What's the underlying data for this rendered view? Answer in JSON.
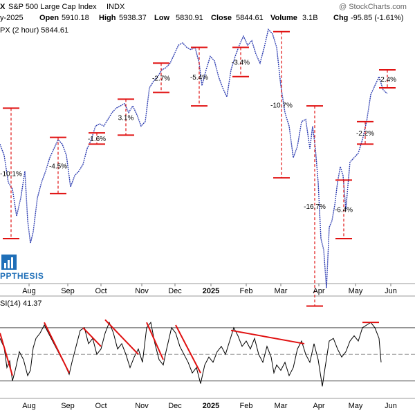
{
  "header": {
    "symbol_tail": "X",
    "name": "S&P 500 Large Cap Index",
    "exchange": "INDX",
    "watermark": "@ StockCharts.com",
    "date_tail": "y-2025",
    "open_label": "Open",
    "open_value": "5910.18",
    "high_label": "High",
    "high_value": "5938.37",
    "low_label": "Low",
    "low_value": "5830.91",
    "close_label": "Close",
    "close_value": "5844.61",
    "volume_label": "Volume",
    "volume_value": "3.1B",
    "chg_label": "Chg",
    "chg_value": "-95.85 (-1.61%)",
    "legend": "PX (2 hour) 5844.61"
  },
  "logo_text": "PPTHESIS",
  "rsi_legend": "SI(14) 41.37",
  "colors": {
    "price": "#2b3bb0",
    "marker": "#e01010",
    "rsi": "#000000",
    "trend": "#e01010",
    "logo": "#1f6fb8"
  },
  "chart_data": {
    "type": "line",
    "price_axis_range": [
      5000,
      6150
    ],
    "x_labels": [
      "Aug",
      "Sep",
      "Oct",
      "Nov",
      "Dec",
      "2025",
      "Feb",
      "Mar",
      "Apr",
      "May",
      "Jun"
    ],
    "price_series": [
      [
        0,
        5620
      ],
      [
        6,
        5570
      ],
      [
        12,
        5450
      ],
      [
        18,
        5420
      ],
      [
        24,
        5300
      ],
      [
        30,
        5380
      ],
      [
        36,
        5500
      ],
      [
        40,
        5280
      ],
      [
        44,
        5180
      ],
      [
        48,
        5230
      ],
      [
        54,
        5380
      ],
      [
        60,
        5450
      ],
      [
        66,
        5500
      ],
      [
        72,
        5560
      ],
      [
        78,
        5600
      ],
      [
        84,
        5640
      ],
      [
        90,
        5620
      ],
      [
        96,
        5570
      ],
      [
        102,
        5430
      ],
      [
        108,
        5480
      ],
      [
        114,
        5500
      ],
      [
        120,
        5530
      ],
      [
        126,
        5600
      ],
      [
        132,
        5640
      ],
      [
        138,
        5700
      ],
      [
        144,
        5710
      ],
      [
        150,
        5700
      ],
      [
        156,
        5730
      ],
      [
        162,
        5760
      ],
      [
        168,
        5780
      ],
      [
        174,
        5790
      ],
      [
        180,
        5800
      ],
      [
        186,
        5760
      ],
      [
        192,
        5790
      ],
      [
        198,
        5750
      ],
      [
        204,
        5700
      ],
      [
        210,
        5720
      ],
      [
        216,
        5870
      ],
      [
        222,
        5900
      ],
      [
        228,
        5920
      ],
      [
        234,
        5950
      ],
      [
        240,
        5960
      ],
      [
        246,
        5980
      ],
      [
        252,
        6020
      ],
      [
        258,
        6060
      ],
      [
        264,
        6070
      ],
      [
        270,
        6050
      ],
      [
        276,
        6040
      ],
      [
        282,
        6050
      ],
      [
        288,
        5980
      ],
      [
        292,
        5880
      ],
      [
        298,
        5950
      ],
      [
        304,
        6010
      ],
      [
        310,
        5990
      ],
      [
        316,
        5920
      ],
      [
        322,
        5870
      ],
      [
        328,
        5830
      ],
      [
        334,
        5950
      ],
      [
        340,
        6010
      ],
      [
        346,
        6060
      ],
      [
        352,
        6100
      ],
      [
        358,
        6060
      ],
      [
        364,
        6080
      ],
      [
        370,
        6020
      ],
      [
        376,
        5980
      ],
      [
        382,
        6050
      ],
      [
        388,
        6130
      ],
      [
        394,
        6110
      ],
      [
        400,
        6050
      ],
      [
        406,
        5880
      ],
      [
        412,
        5760
      ],
      [
        418,
        5700
      ],
      [
        424,
        5560
      ],
      [
        430,
        5610
      ],
      [
        436,
        5720
      ],
      [
        442,
        5730
      ],
      [
        448,
        5600
      ],
      [
        452,
        5700
      ],
      [
        456,
        5600
      ],
      [
        460,
        5450
      ],
      [
        464,
        5200
      ],
      [
        468,
        5150
      ],
      [
        472,
        4980
      ],
      [
        476,
        5250
      ],
      [
        480,
        5280
      ],
      [
        484,
        5350
      ],
      [
        488,
        5450
      ],
      [
        492,
        5520
      ],
      [
        496,
        5480
      ],
      [
        500,
        5330
      ],
      [
        506,
        5540
      ],
      [
        512,
        5560
      ],
      [
        518,
        5580
      ],
      [
        524,
        5640
      ],
      [
        530,
        5720
      ],
      [
        536,
        5840
      ],
      [
        542,
        5880
      ],
      [
        548,
        5920
      ],
      [
        554,
        5860
      ],
      [
        560,
        5845
      ]
    ],
    "measure_markers": [
      {
        "label": "-10.1%",
        "high": 5780,
        "low": 5200
      },
      {
        "label": "-4.5%",
        "high": 5650,
        "low": 5400
      },
      {
        "label": "-1.6%",
        "high": 5670,
        "low": 5620
      },
      {
        "label": "3.1%",
        "high": 5820,
        "low": 5660
      },
      {
        "label": "-2.7%",
        "high": 5980,
        "low": 5850
      },
      {
        "label": "-5.4%",
        "high": 6050,
        "low": 5790
      },
      {
        "label": "-3.4%",
        "high": 6050,
        "low": 5920
      },
      {
        "label": "-10.7%",
        "high": 6120,
        "low": 5470
      },
      {
        "label": "-16.7%",
        "high": 5790,
        "low": 4900
      },
      {
        "label": "-6.4%",
        "high": 5460,
        "low": 5200
      },
      {
        "label": "-2.2%",
        "high": 5720,
        "low": 5620
      },
      {
        "label": "-2.4%",
        "high": 5950,
        "low": 5870
      }
    ],
    "rsi": {
      "value": "41.37",
      "range": [
        20,
        85
      ],
      "levels": [
        70,
        50,
        30
      ],
      "series": [
        [
          0,
          62
        ],
        [
          6,
          55
        ],
        [
          10,
          40
        ],
        [
          14,
          45
        ],
        [
          18,
          30
        ],
        [
          22,
          38
        ],
        [
          28,
          52
        ],
        [
          34,
          46
        ],
        [
          40,
          34
        ],
        [
          44,
          38
        ],
        [
          48,
          55
        ],
        [
          52,
          62
        ],
        [
          58,
          66
        ],
        [
          64,
          72
        ],
        [
          70,
          66
        ],
        [
          76,
          60
        ],
        [
          82,
          54
        ],
        [
          88,
          48
        ],
        [
          94,
          42
        ],
        [
          100,
          35
        ],
        [
          104,
          44
        ],
        [
          110,
          56
        ],
        [
          116,
          68
        ],
        [
          122,
          70
        ],
        [
          128,
          58
        ],
        [
          134,
          62
        ],
        [
          140,
          50
        ],
        [
          146,
          54
        ],
        [
          152,
          66
        ],
        [
          158,
          74
        ],
        [
          164,
          66
        ],
        [
          170,
          54
        ],
        [
          176,
          58
        ],
        [
          182,
          50
        ],
        [
          188,
          40
        ],
        [
          194,
          48
        ],
        [
          200,
          54
        ],
        [
          206,
          44
        ],
        [
          212,
          70
        ],
        [
          218,
          74
        ],
        [
          224,
          58
        ],
        [
          230,
          46
        ],
        [
          236,
          42
        ],
        [
          240,
          52
        ],
        [
          248,
          70
        ],
        [
          254,
          66
        ],
        [
          260,
          56
        ],
        [
          266,
          50
        ],
        [
          272,
          44
        ],
        [
          278,
          36
        ],
        [
          284,
          40
        ],
        [
          290,
          28
        ],
        [
          296,
          42
        ],
        [
          302,
          48
        ],
        [
          308,
          44
        ],
        [
          314,
          52
        ],
        [
          320,
          56
        ],
        [
          326,
          50
        ],
        [
          332,
          60
        ],
        [
          338,
          70
        ],
        [
          344,
          64
        ],
        [
          350,
          56
        ],
        [
          356,
          60
        ],
        [
          362,
          54
        ],
        [
          368,
          62
        ],
        [
          374,
          50
        ],
        [
          380,
          44
        ],
        [
          386,
          56
        ],
        [
          392,
          48
        ],
        [
          396,
          36
        ],
        [
          400,
          42
        ],
        [
          406,
          38
        ],
        [
          412,
          44
        ],
        [
          418,
          34
        ],
        [
          424,
          40
        ],
        [
          430,
          54
        ],
        [
          436,
          60
        ],
        [
          442,
          50
        ],
        [
          448,
          44
        ],
        [
          454,
          58
        ],
        [
          460,
          46
        ],
        [
          466,
          26
        ],
        [
          470,
          40
        ],
        [
          476,
          60
        ],
        [
          482,
          62
        ],
        [
          488,
          54
        ],
        [
          494,
          48
        ],
        [
          500,
          52
        ],
        [
          506,
          60
        ],
        [
          512,
          64
        ],
        [
          518,
          60
        ],
        [
          524,
          70
        ],
        [
          530,
          72
        ],
        [
          536,
          74
        ],
        [
          542,
          70
        ],
        [
          548,
          62
        ],
        [
          551,
          44
        ]
      ]
    }
  }
}
